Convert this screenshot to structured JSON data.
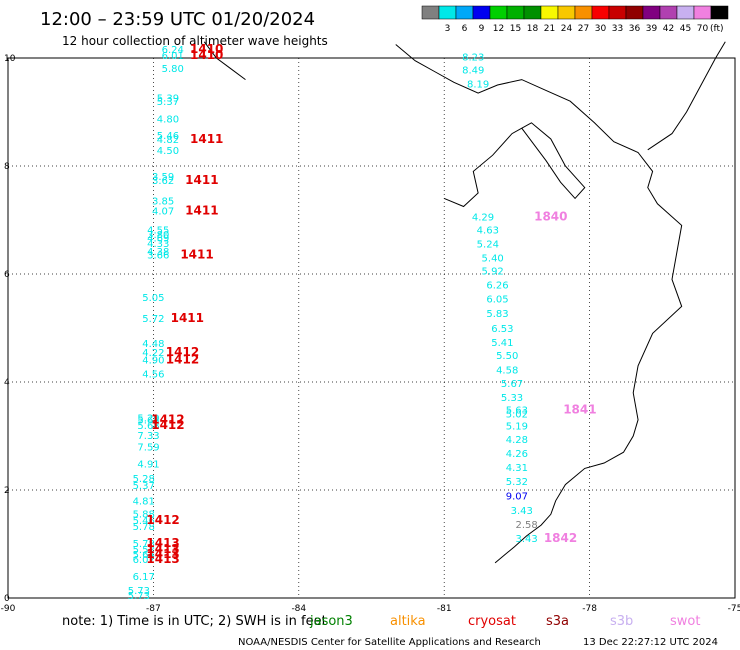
{
  "header": {
    "title": "12:00 – 23:59 UTC 01/20/2024",
    "subtitle": "12 hour collection of altimeter wave heights"
  },
  "colorbar": {
    "unit": "(ft)",
    "stops": [
      {
        "label": "",
        "color": "#808080"
      },
      {
        "label": "3",
        "color": "#00e8e8"
      },
      {
        "label": "6",
        "color": "#00a8f8"
      },
      {
        "label": "9",
        "color": "#0000f0"
      },
      {
        "label": "12",
        "color": "#00d000"
      },
      {
        "label": "15",
        "color": "#00b000"
      },
      {
        "label": "18",
        "color": "#009000"
      },
      {
        "label": "21",
        "color": "#f8f800"
      },
      {
        "label": "24",
        "color": "#f8c800"
      },
      {
        "label": "27",
        "color": "#f89000"
      },
      {
        "label": "30",
        "color": "#f80000"
      },
      {
        "label": "33",
        "color": "#c80000"
      },
      {
        "label": "36",
        "color": "#900000"
      },
      {
        "label": "39",
        "color": "#800080"
      },
      {
        "label": "42",
        "color": "#b040b0"
      },
      {
        "label": "45",
        "color": "#c8b0f0"
      },
      {
        "label": "70",
        "color": "#f080e0"
      },
      {
        "label": "",
        "color": "#000000"
      }
    ]
  },
  "map": {
    "lon_ticks": [
      "-90",
      "-87",
      "-84",
      "-81",
      "-78",
      "-75"
    ],
    "lat_ticks": [
      "0",
      "2",
      "4",
      "6",
      "8",
      "10"
    ]
  },
  "tracks": {
    "west": {
      "swh": [
        {
          "v": "6.24",
          "lon": -86.6,
          "lat": 10.09,
          "c": "#00e8e8"
        },
        {
          "v": "6.01",
          "lon": -86.6,
          "lat": 9.98,
          "c": "#00e8e8"
        },
        {
          "v": "5.80",
          "lon": -86.6,
          "lat": 9.74,
          "c": "#00e8e8"
        },
        {
          "v": "5.39",
          "lon": -86.7,
          "lat": 9.19,
          "c": "#00e8e8"
        },
        {
          "v": "5.37",
          "lon": -86.7,
          "lat": 9.13,
          "c": "#00e8e8"
        },
        {
          "v": "4.80",
          "lon": -86.7,
          "lat": 8.81,
          "c": "#00e8e8"
        },
        {
          "v": "5.46",
          "lon": -86.7,
          "lat": 8.5,
          "c": "#00e8e8"
        },
        {
          "v": "4.82",
          "lon": -86.7,
          "lat": 8.43,
          "c": "#00e8e8"
        },
        {
          "v": "4.50",
          "lon": -86.7,
          "lat": 8.22,
          "c": "#00e8e8"
        },
        {
          "v": "3.59",
          "lon": -86.8,
          "lat": 7.74,
          "c": "#00e8e8"
        },
        {
          "v": "3.62",
          "lon": -86.8,
          "lat": 7.67,
          "c": "#00e8e8"
        },
        {
          "v": "3.85",
          "lon": -86.8,
          "lat": 7.29,
          "c": "#00e8e8"
        },
        {
          "v": "4.07",
          "lon": -86.8,
          "lat": 7.1,
          "c": "#00e8e8"
        },
        {
          "v": "4.55",
          "lon": -86.9,
          "lat": 6.75,
          "c": "#00e8e8"
        },
        {
          "v": "3.80",
          "lon": -86.9,
          "lat": 6.67,
          "c": "#00e8e8"
        },
        {
          "v": "4.69",
          "lon": -86.9,
          "lat": 6.6,
          "c": "#00e8e8"
        },
        {
          "v": "4.33",
          "lon": -86.9,
          "lat": 6.5,
          "c": "#00e8e8"
        },
        {
          "v": "4.38",
          "lon": -86.9,
          "lat": 6.35,
          "c": "#00e8e8"
        },
        {
          "v": "3.66",
          "lon": -86.9,
          "lat": 6.29,
          "c": "#00e8e8"
        },
        {
          "v": "5.05",
          "lon": -87.0,
          "lat": 5.5,
          "c": "#00e8e8"
        },
        {
          "v": "5.72",
          "lon": -87.0,
          "lat": 5.11,
          "c": "#00e8e8"
        },
        {
          "v": "4.48",
          "lon": -87.0,
          "lat": 4.65,
          "c": "#00e8e8"
        },
        {
          "v": "4.22",
          "lon": -87.0,
          "lat": 4.48,
          "c": "#00e8e8"
        },
        {
          "v": "4.90",
          "lon": -87.0,
          "lat": 4.34,
          "c": "#00e8e8"
        },
        {
          "v": "4.56",
          "lon": -87.0,
          "lat": 4.08,
          "c": "#00e8e8"
        },
        {
          "v": "5.29",
          "lon": -87.1,
          "lat": 3.27,
          "c": "#00e8e8"
        },
        {
          "v": "5.65",
          "lon": -87.1,
          "lat": 3.23,
          "c": "#00e8e8"
        },
        {
          "v": "5.68",
          "lon": -87.1,
          "lat": 3.13,
          "c": "#00e8e8"
        },
        {
          "v": "7.33",
          "lon": -87.1,
          "lat": 2.94,
          "c": "#00e8e8"
        },
        {
          "v": "7.59",
          "lon": -87.1,
          "lat": 2.73,
          "c": "#00e8e8"
        },
        {
          "v": "4.91",
          "lon": -87.1,
          "lat": 2.42,
          "c": "#00e8e8"
        },
        {
          "v": "5.28",
          "lon": -87.2,
          "lat": 2.15,
          "c": "#00e8e8"
        },
        {
          "v": "5.37",
          "lon": -87.2,
          "lat": 2.02,
          "c": "#00e8e8"
        },
        {
          "v": "4.81",
          "lon": -87.2,
          "lat": 1.73,
          "c": "#00e8e8"
        },
        {
          "v": "5.88",
          "lon": -87.2,
          "lat": 1.49,
          "c": "#00e8e8"
        },
        {
          "v": "5.46",
          "lon": -87.2,
          "lat": 1.37,
          "c": "#00e8e8"
        },
        {
          "v": "5.78",
          "lon": -87.2,
          "lat": 1.26,
          "c": "#00e8e8"
        },
        {
          "v": "5.78",
          "lon": -87.2,
          "lat": 0.94,
          "c": "#00e8e8"
        },
        {
          "v": "5.52",
          "lon": -87.2,
          "lat": 0.83,
          "c": "#00e8e8"
        },
        {
          "v": "5.64",
          "lon": -87.2,
          "lat": 0.74,
          "c": "#00e8e8"
        },
        {
          "v": "6.07",
          "lon": -87.2,
          "lat": 0.65,
          "c": "#00e8e8"
        },
        {
          "v": "6.17",
          "lon": -87.2,
          "lat": 0.33,
          "c": "#00e8e8"
        },
        {
          "v": "5.73",
          "lon": -87.3,
          "lat": 0.07,
          "c": "#00e8e8"
        },
        {
          "v": "5.73",
          "lon": -87.3,
          "lat": -0.02,
          "c": "#00e8e8"
        }
      ],
      "passes": [
        {
          "v": "1410",
          "lon": -85.9,
          "lat": 10.09,
          "c": "#e00000"
        },
        {
          "v": "1410",
          "lon": -85.9,
          "lat": 9.98,
          "c": "#e00000"
        },
        {
          "v": "1411",
          "lon": -85.9,
          "lat": 8.43,
          "c": "#e00000"
        },
        {
          "v": "1411",
          "lon": -86.0,
          "lat": 7.67,
          "c": "#e00000"
        },
        {
          "v": "1411",
          "lon": -86.0,
          "lat": 7.1,
          "c": "#e00000"
        },
        {
          "v": "1411",
          "lon": -86.1,
          "lat": 6.29,
          "c": "#e00000"
        },
        {
          "v": "1411",
          "lon": -86.3,
          "lat": 5.11,
          "c": "#e00000"
        },
        {
          "v": "1412",
          "lon": -86.4,
          "lat": 4.48,
          "c": "#e00000"
        },
        {
          "v": "1412",
          "lon": -86.4,
          "lat": 4.34,
          "c": "#e00000"
        },
        {
          "v": "1412",
          "lon": -86.7,
          "lat": 3.23,
          "c": "#e00000"
        },
        {
          "v": "1412",
          "lon": -86.7,
          "lat": 3.13,
          "c": "#e00000"
        },
        {
          "v": "1412",
          "lon": -86.8,
          "lat": 1.37,
          "c": "#e00000"
        },
        {
          "v": "1413",
          "lon": -86.8,
          "lat": 0.94,
          "c": "#e00000"
        },
        {
          "v": "1413",
          "lon": -86.8,
          "lat": 0.83,
          "c": "#e00000"
        },
        {
          "v": "1413",
          "lon": -86.8,
          "lat": 0.74,
          "c": "#e00000"
        },
        {
          "v": "1413",
          "lon": -86.8,
          "lat": 0.65,
          "c": "#e00000"
        }
      ]
    },
    "north": {
      "swh": [
        {
          "v": "8.23",
          "lon": -80.4,
          "lat": 9.95,
          "c": "#00e8e8"
        },
        {
          "v": "8.49",
          "lon": -80.4,
          "lat": 9.71,
          "c": "#00e8e8"
        },
        {
          "v": "8.19",
          "lon": -80.3,
          "lat": 9.45,
          "c": "#00e8e8"
        }
      ]
    },
    "east": {
      "swh": [
        {
          "v": "4.29",
          "lon": -80.2,
          "lat": 6.99,
          "c": "#00e8e8"
        },
        {
          "v": "4.63",
          "lon": -80.1,
          "lat": 6.75,
          "c": "#00e8e8"
        },
        {
          "v": "5.24",
          "lon": -80.1,
          "lat": 6.49,
          "c": "#00e8e8"
        },
        {
          "v": "5.40",
          "lon": -80.0,
          "lat": 6.23,
          "c": "#00e8e8"
        },
        {
          "v": "5.92",
          "lon": -80.0,
          "lat": 5.99,
          "c": "#00e8e8"
        },
        {
          "v": "6.26",
          "lon": -79.9,
          "lat": 5.73,
          "c": "#00e8e8"
        },
        {
          "v": "6.05",
          "lon": -79.9,
          "lat": 5.47,
          "c": "#00e8e8"
        },
        {
          "v": "5.83",
          "lon": -79.9,
          "lat": 5.2,
          "c": "#00e8e8"
        },
        {
          "v": "6.53",
          "lon": -79.8,
          "lat": 4.93,
          "c": "#00e8e8"
        },
        {
          "v": "5.41",
          "lon": -79.8,
          "lat": 4.67,
          "c": "#00e8e8"
        },
        {
          "v": "5.50",
          "lon": -79.7,
          "lat": 4.43,
          "c": "#00e8e8"
        },
        {
          "v": "4.58",
          "lon": -79.7,
          "lat": 4.16,
          "c": "#00e8e8"
        },
        {
          "v": "5.67",
          "lon": -79.6,
          "lat": 3.91,
          "c": "#00e8e8"
        },
        {
          "v": "5.33",
          "lon": -79.6,
          "lat": 3.65,
          "c": "#00e8e8"
        },
        {
          "v": "5.63",
          "lon": -79.5,
          "lat": 3.42,
          "c": "#00e8e8"
        },
        {
          "v": "5.02",
          "lon": -79.5,
          "lat": 3.34,
          "c": "#00e8e8"
        },
        {
          "v": "5.19",
          "lon": -79.5,
          "lat": 3.12,
          "c": "#00e8e8"
        },
        {
          "v": "4.28",
          "lon": -79.5,
          "lat": 2.87,
          "c": "#00e8e8"
        },
        {
          "v": "4.26",
          "lon": -79.5,
          "lat": 2.61,
          "c": "#00e8e8"
        },
        {
          "v": "4.31",
          "lon": -79.5,
          "lat": 2.35,
          "c": "#00e8e8"
        },
        {
          "v": "5.32",
          "lon": -79.5,
          "lat": 2.09,
          "c": "#00e8e8"
        },
        {
          "v": "9.07",
          "lon": -79.5,
          "lat": 1.82,
          "c": "#0000f0"
        },
        {
          "v": "3.43",
          "lon": -79.4,
          "lat": 1.56,
          "c": "#00e8e8"
        },
        {
          "v": "2.58",
          "lon": -79.3,
          "lat": 1.3,
          "c": "#808080"
        },
        {
          "v": "3.43",
          "lon": -79.3,
          "lat": 1.04,
          "c": "#00e8e8"
        }
      ],
      "passes": [
        {
          "v": "1840",
          "lon": -78.8,
          "lat": 6.99,
          "c": "#f080e0"
        },
        {
          "v": "1841",
          "lon": -78.2,
          "lat": 3.42,
          "c": "#f080e0"
        },
        {
          "v": "1842",
          "lon": -78.6,
          "lat": 1.04,
          "c": "#f080e0"
        }
      ]
    }
  },
  "footer": {
    "note": "note: 1) Time is in UTC; 2) SWH is in feet",
    "legend": [
      {
        "label": "jason3",
        "color": "#008000"
      },
      {
        "label": "altika",
        "color": "#f89000"
      },
      {
        "label": "cryosat",
        "color": "#e00000"
      },
      {
        "label": "s3a",
        "color": "#900000"
      },
      {
        "label": "s3b",
        "color": "#c8b0f0"
      },
      {
        "label": "swot",
        "color": "#f080e0"
      }
    ],
    "credit": "NOAA/NESDIS Center for Satellite Applications and Research",
    "timestamp": "13 Dec 22:27:12 UTC 2024"
  }
}
